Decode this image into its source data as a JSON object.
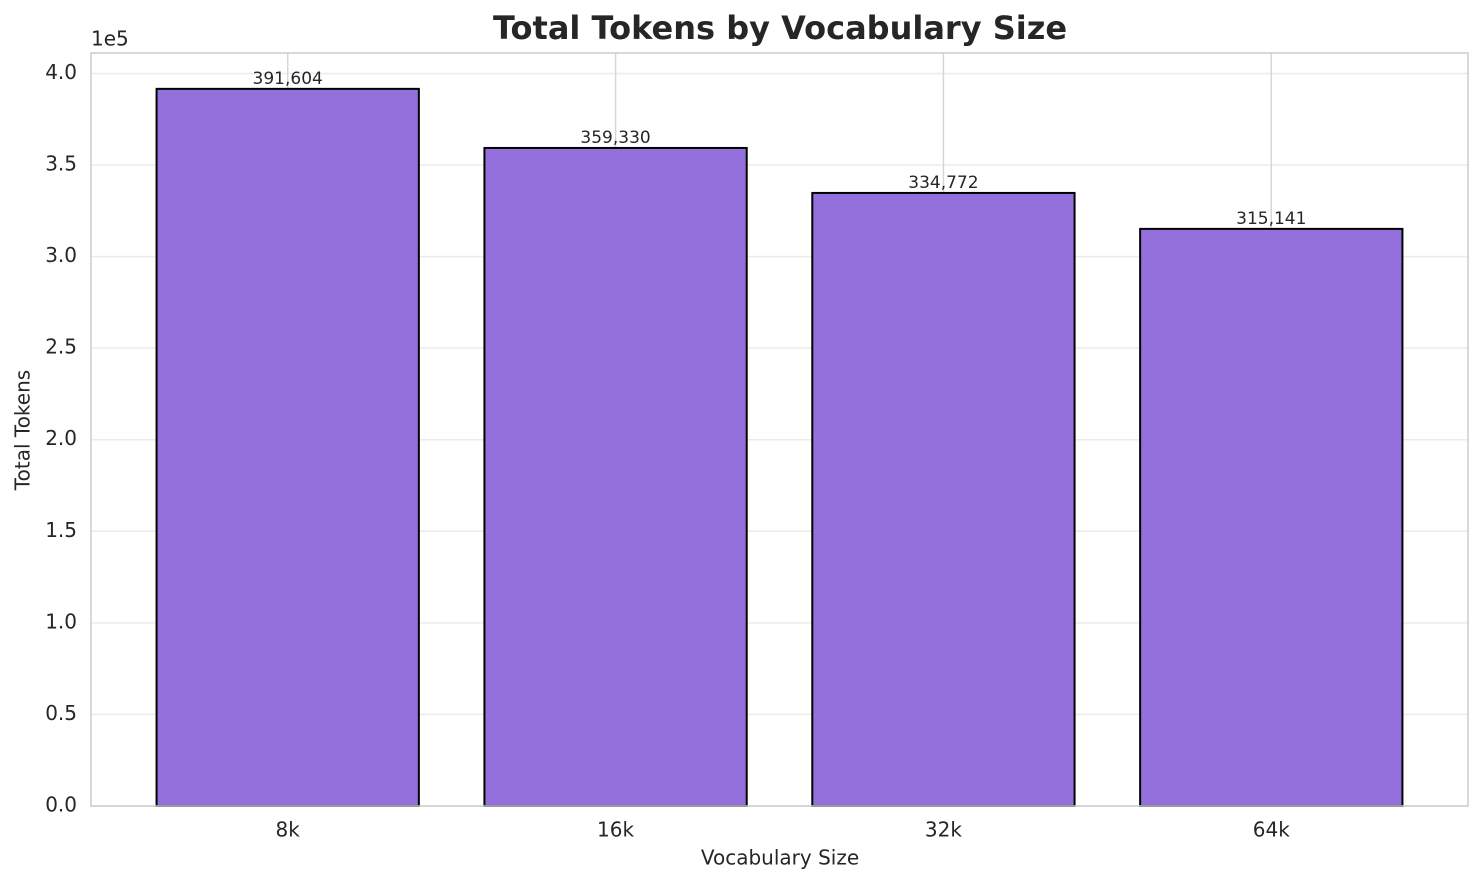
{
  "chart_data": {
    "type": "bar",
    "title": "Total Tokens by Vocabulary Size",
    "x_label": "Vocabulary Size",
    "y_label": "Total Tokens",
    "y_offset_label": "1e5",
    "categories": [
      "8k",
      "16k",
      "32k",
      "64k"
    ],
    "values": [
      391604,
      359330,
      334772,
      315141
    ],
    "value_labels": [
      "391,604",
      "359,330",
      "334,772",
      "315,141"
    ],
    "color": "#9370db",
    "edgecolor": "#000000",
    "ylim": [
      0,
      411184
    ],
    "yticks": [
      {
        "value": 0,
        "label": "0.0"
      },
      {
        "value": 50000,
        "label": "0.5"
      },
      {
        "value": 100000,
        "label": "1.0"
      },
      {
        "value": 150000,
        "label": "1.5"
      },
      {
        "value": 200000,
        "label": "2.0"
      },
      {
        "value": 250000,
        "label": "2.5"
      },
      {
        "value": 300000,
        "label": "3.0"
      },
      {
        "value": 350000,
        "label": "3.5"
      },
      {
        "value": 400000,
        "label": "4.0"
      }
    ],
    "grid": true
  }
}
